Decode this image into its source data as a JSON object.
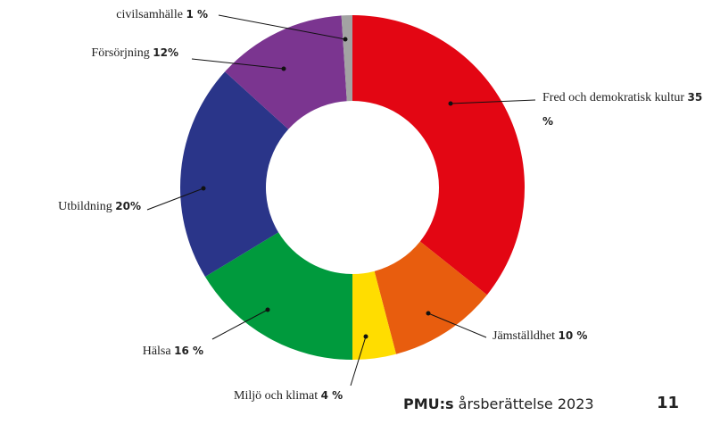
{
  "chart_data": {
    "type": "donut",
    "categories": [
      "Fred och demokratisk kultur",
      "Jämställdhet",
      "Miljö och klimat",
      "Hälsa",
      "Utbildning",
      "Försörjning",
      "civilsamhälle"
    ],
    "values": [
      35,
      10,
      4,
      16,
      20,
      12,
      1
    ],
    "value_labels": [
      "35 %",
      "10 %",
      "4 %",
      "16 %",
      "20%",
      "12%",
      "1 %"
    ],
    "colors": [
      "#e30613",
      "#e85d0e",
      "#ffdd00",
      "#009a3d",
      "#2a3589",
      "#7b3590",
      "#a3a3a3"
    ]
  },
  "footer": {
    "publisher": "PMU:s",
    "title": "årsberättelse 2023",
    "page": "11"
  }
}
